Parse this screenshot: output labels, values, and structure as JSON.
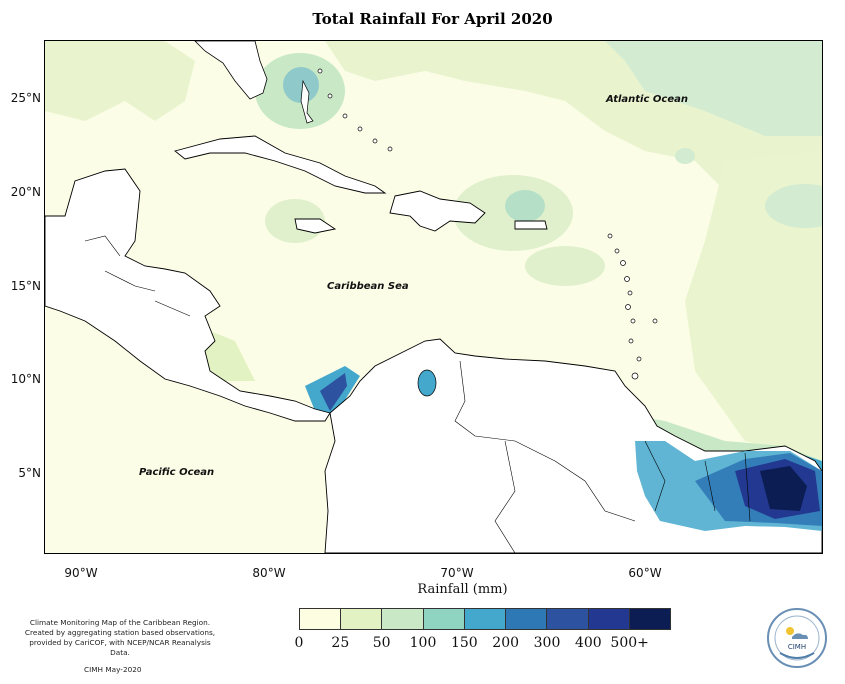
{
  "title": "Total Rainfall For April 2020",
  "axis_title": "Rainfall (mm)",
  "lat_labels": [
    "25°N",
    "20°N",
    "15°N",
    "10°N",
    "5°N"
  ],
  "lon_labels": [
    "90°W",
    "80°W",
    "70°W",
    "60°W"
  ],
  "ocean_labels": {
    "atlantic": "Atlantic Ocean",
    "caribbean": "Caribbean Sea",
    "pacific": "Pacific Ocean"
  },
  "legend": {
    "ticks": [
      "0",
      "25",
      "50",
      "100",
      "150",
      "200",
      "300",
      "400",
      "500+"
    ],
    "colors": [
      "#fcfde1",
      "#e3f2c2",
      "#c9e9c6",
      "#8fd3c1",
      "#44a8cc",
      "#2f78b6",
      "#2c52a0",
      "#233890",
      "#0b1d52"
    ]
  },
  "footer": {
    "line1": "Climate Monitoring Map of the Caribbean Region.",
    "line2": "Created by aggregating station based observations,",
    "line3": "provided by CariCOF, with NCEP/NCAR Reanalysis Data.",
    "date": "CIMH May-2020"
  },
  "logo": {
    "text": "CIMH"
  },
  "colors": {
    "land": "#ffffff",
    "sea_base": "#fbfde6",
    "coastline": "#000000"
  }
}
